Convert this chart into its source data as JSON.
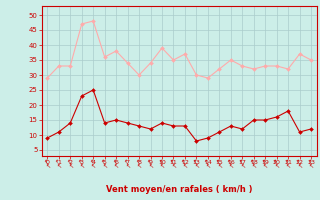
{
  "hours": [
    0,
    1,
    2,
    3,
    4,
    5,
    6,
    7,
    8,
    9,
    10,
    11,
    12,
    13,
    14,
    15,
    16,
    17,
    18,
    19,
    20,
    21,
    22,
    23
  ],
  "mean_wind": [
    9,
    11,
    14,
    23,
    25,
    14,
    15,
    14,
    13,
    12,
    14,
    13,
    13,
    8,
    9,
    11,
    13,
    12,
    15,
    15,
    16,
    18,
    11,
    12
  ],
  "gust_wind": [
    29,
    33,
    33,
    47,
    48,
    36,
    38,
    34,
    30,
    34,
    39,
    35,
    37,
    30,
    29,
    32,
    35,
    33,
    32,
    33,
    33,
    32,
    37,
    35
  ],
  "mean_color": "#cc0000",
  "gust_color": "#ffaaaa",
  "bg_color": "#cceee8",
  "grid_color": "#aacccc",
  "xlabel": "Vent moyen/en rafales ( km/h )",
  "xlabel_color": "#cc0000",
  "tick_color": "#cc0000",
  "spine_color": "#cc0000",
  "ylim": [
    3,
    53
  ],
  "yticks": [
    5,
    10,
    15,
    20,
    25,
    30,
    35,
    40,
    45,
    50
  ],
  "marker_size": 2.0,
  "line_width": 0.8,
  "arrow_char": "↰"
}
